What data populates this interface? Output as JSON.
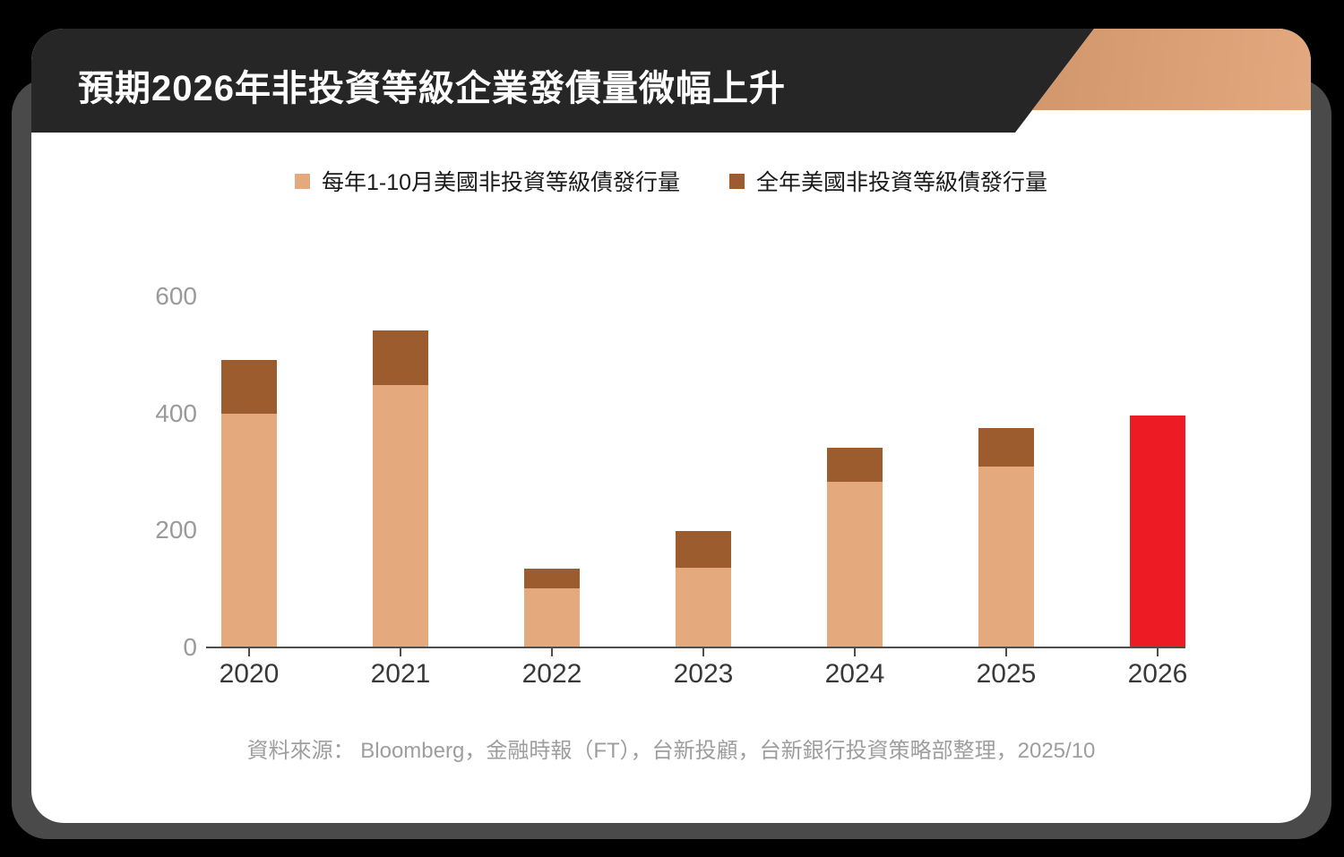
{
  "header": {
    "title": "預期2026年非投資等級企業發債量微幅上升"
  },
  "legend": {
    "items": [
      {
        "label": "每年1-10月美國非投資等級債發行量",
        "color": "#e5a97e"
      },
      {
        "label": "全年美國非投資等級債發行量",
        "color": "#9d5c2e"
      }
    ]
  },
  "chart_data": {
    "type": "bar",
    "subtype": "stacked-bar-with-forecast",
    "title": "預期2026年非投資等級企業發債量微幅上升",
    "categories": [
      "2020",
      "2021",
      "2022",
      "2023",
      "2024",
      "2025",
      "2026"
    ],
    "series": [
      {
        "name": "每年1-10月美國非投資等級債發行量",
        "color": "#e5a97e",
        "values": [
          398,
          447,
          100,
          135,
          282,
          307,
          null
        ]
      },
      {
        "name": "全年美國非投資等級債發行量",
        "color": "#9d5c2e",
        "note": "values are full-year totals; drawn as cap above the Jan-Oct segment",
        "values": [
          490,
          540,
          133,
          197,
          340,
          373,
          null
        ]
      }
    ],
    "forecast": {
      "category": "2026",
      "value": 395,
      "color": "#ed1c24"
    },
    "xlabel": "",
    "ylabel": "",
    "ylim": [
      0,
      600
    ],
    "yticks": [
      0,
      200,
      400,
      600
    ],
    "grid": false,
    "legend_position": "top-center"
  },
  "footer": {
    "source": "資料來源： Bloomberg，金融時報（FT），台新投顧，台新銀行投資策略部整理，2025/10"
  },
  "colors": {
    "background": "#000000",
    "card": "#ffffff",
    "card_shadow": "#4a4a4a",
    "header_band": "#262626",
    "copper_gradient_from": "#9a6540",
    "copper_gradient_to": "#e3a87f",
    "bar_jan_oct": "#e5a97e",
    "bar_full_year": "#9d5c2e",
    "bar_forecast": "#ed1c24",
    "axis": "#4d4d4d",
    "ytick_text": "#9a9a9a",
    "xtick_text": "#383838"
  }
}
